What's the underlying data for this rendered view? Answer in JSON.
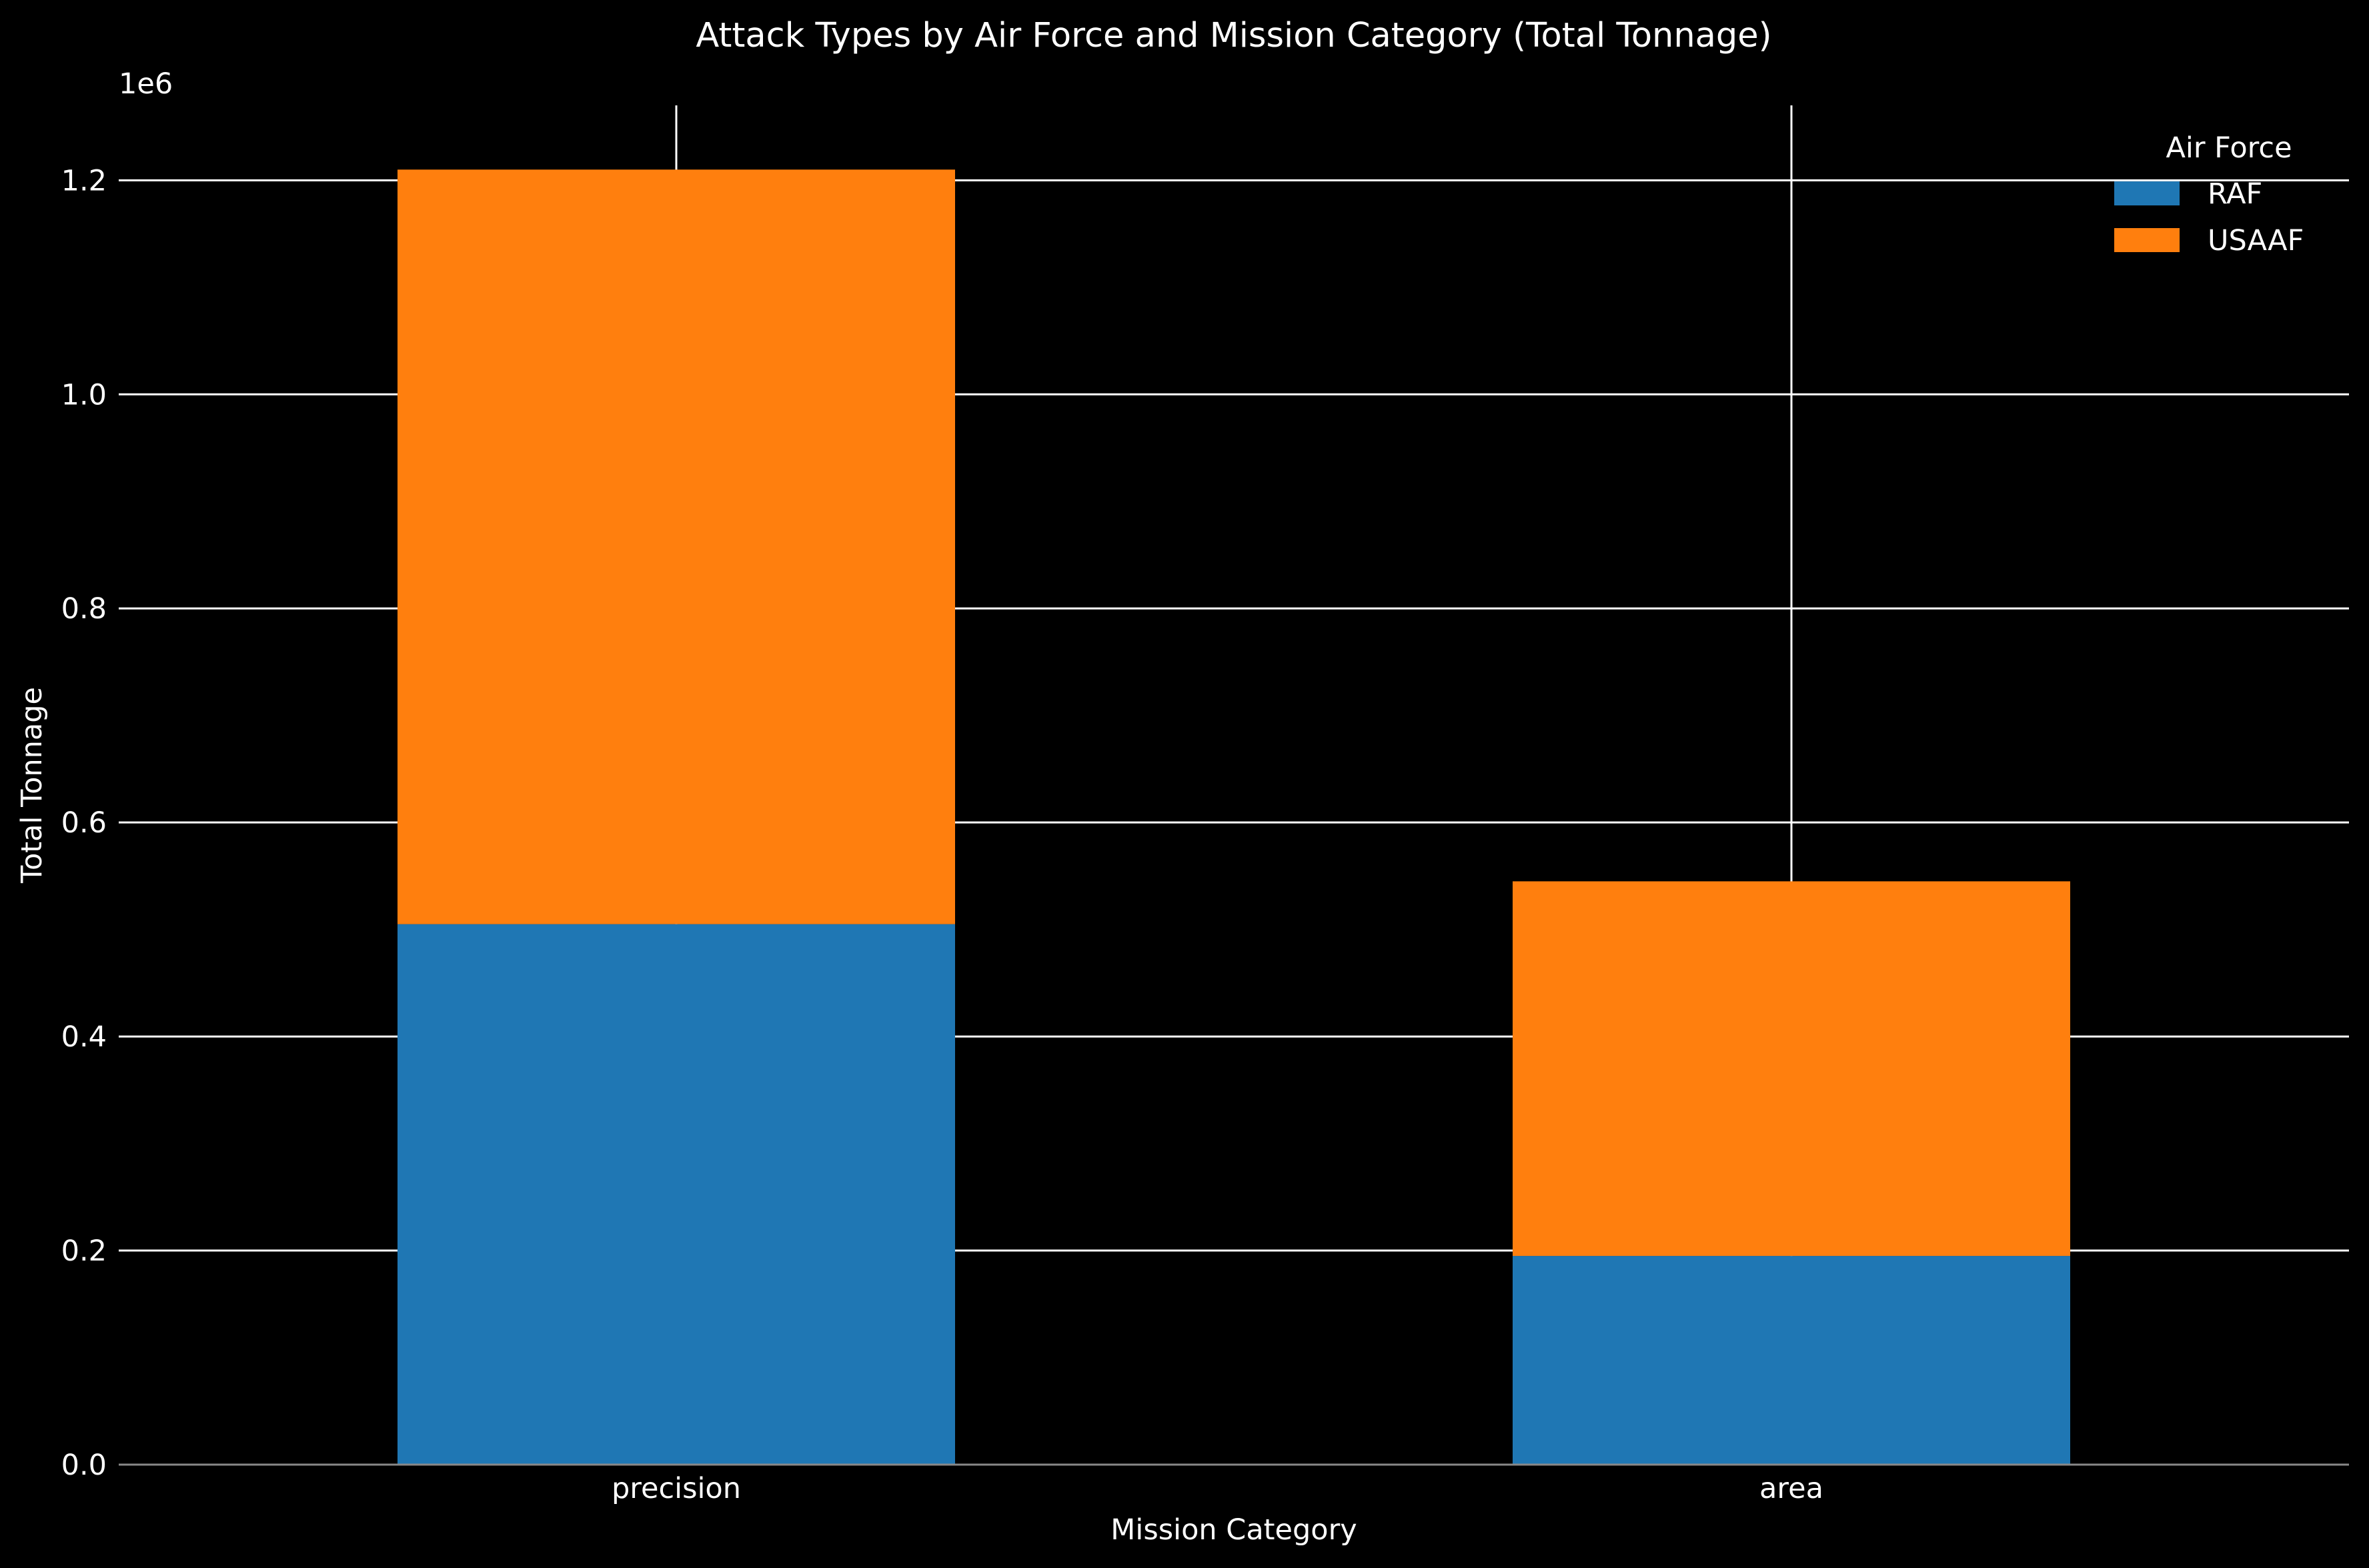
{
  "chart_data": {
    "type": "bar",
    "stacked": true,
    "title": "Attack Types by Air Force and Mission Category (Total Tonnage)",
    "xlabel": "Mission Category",
    "ylabel": "Total Tonnage",
    "y_offset_label": "1e6",
    "categories": [
      "precision",
      "area"
    ],
    "series": [
      {
        "name": "RAF",
        "color": "#1f77b4",
        "values": [
          505000,
          195000
        ]
      },
      {
        "name": "USAAF",
        "color": "#ff7f0e",
        "values": [
          705000,
          350000
        ]
      }
    ],
    "ylim": [
      0,
      1270000
    ],
    "yticks": [
      0,
      200000,
      400000,
      600000,
      800000,
      1000000,
      1200000
    ],
    "ytick_labels": [
      "0.0",
      "0.2",
      "0.4",
      "0.6",
      "0.8",
      "1.0",
      "1.2"
    ],
    "grid": true,
    "legend": {
      "title": "Air Force",
      "placement": "top-right"
    },
    "background": "#000000",
    "text_color": "#ffffff"
  }
}
